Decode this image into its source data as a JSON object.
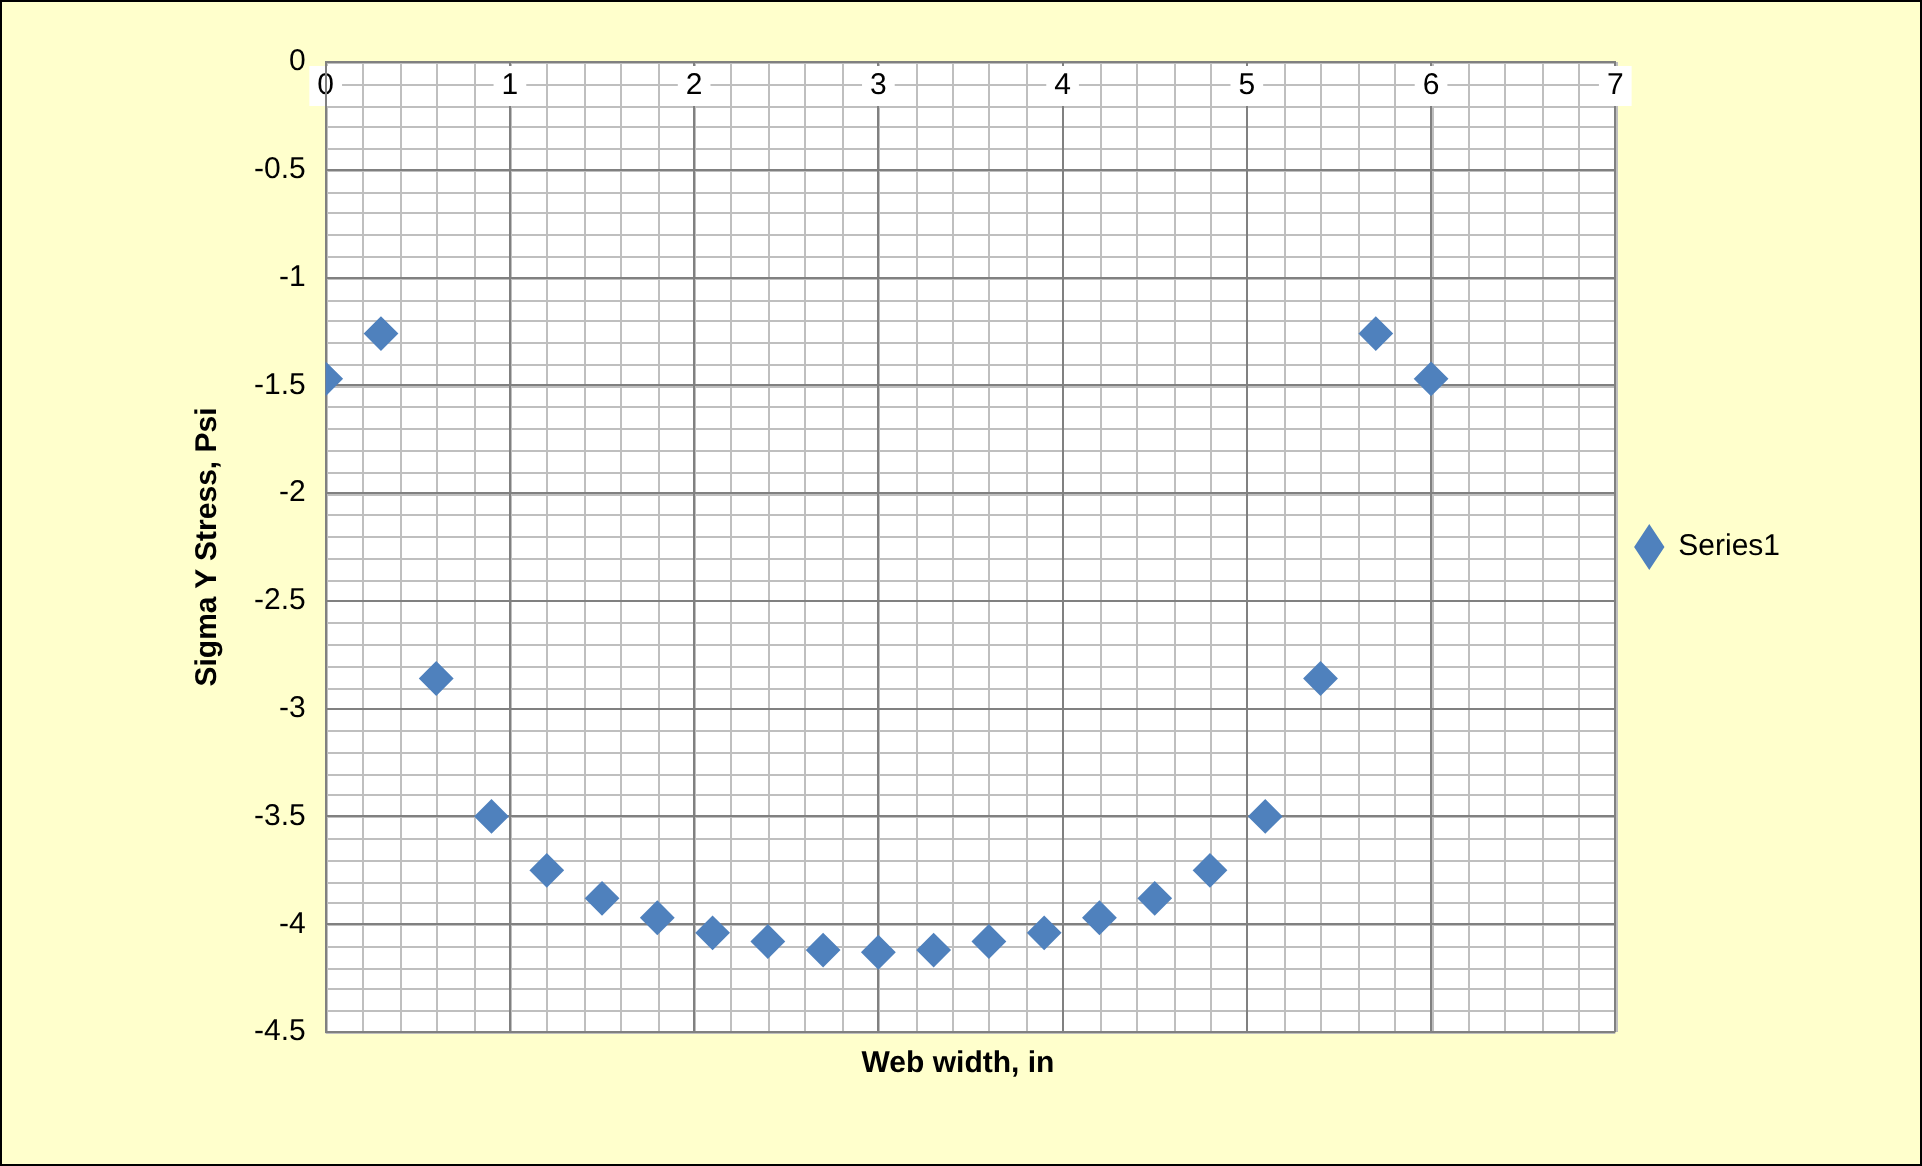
{
  "chart_data": {
    "type": "scatter",
    "xlabel": "Web width, in",
    "ylabel": "Sigma Y Stress, Psi",
    "x": [
      0,
      0.3,
      0.6,
      0.9,
      1.2,
      1.5,
      1.8,
      2.1,
      2.4,
      2.7,
      3.0,
      3.3,
      3.6,
      3.9,
      4.2,
      4.5,
      4.8,
      5.1,
      5.4,
      5.7,
      6.0
    ],
    "series": [
      {
        "name": "Series1",
        "color": "#4f81bd",
        "values": [
          -1.47,
          -1.26,
          -2.86,
          -3.5,
          -3.75,
          -3.88,
          -3.97,
          -4.04,
          -4.08,
          -4.12,
          -4.13,
          -4.12,
          -4.08,
          -4.04,
          -3.97,
          -3.88,
          -3.75,
          -3.5,
          -2.86,
          -1.26,
          -1.47
        ]
      }
    ],
    "xlim": [
      0,
      7
    ],
    "xticks": [
      0,
      1,
      2,
      3,
      4,
      5,
      6,
      7
    ],
    "ylim": [
      -4.5,
      0
    ],
    "yticks": [
      -4.5,
      -4,
      -3.5,
      -3,
      -2.5,
      -2,
      -1.5,
      -1,
      -0.5,
      0
    ],
    "grid": true,
    "legend": "right",
    "marker": "diamond"
  }
}
